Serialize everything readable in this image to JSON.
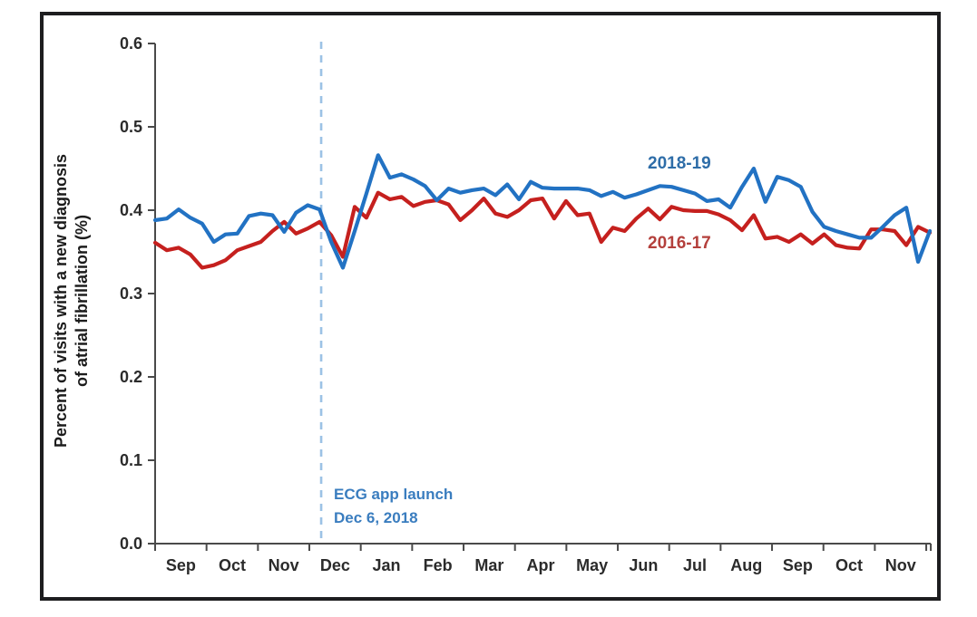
{
  "figure": {
    "y_axis_title_line1": "Percent of visits with a new diagnosis",
    "y_axis_title_line2": "of atrial fibrillation (%)",
    "annotation": {
      "line1": "ECG app launch",
      "line2": "Dec 6, 2018"
    },
    "series_labels": {
      "blue": "2018-19",
      "red": "2016-17"
    }
  },
  "colors": {
    "blue_line": "#2272c3",
    "red_line": "#c5201e",
    "blue_label": "#2e6da8",
    "red_label": "#b4403c",
    "annotation_text": "#3a7dbf",
    "event_dashed_line": "#9cc2e5",
    "axis": "#4a4a4a",
    "frame_border": "#1d1d1f",
    "background": "#ffffff"
  },
  "chart_data": {
    "type": "line",
    "title": "",
    "xlabel": "",
    "ylabel": "Percent of visits with a new diagnosis of atrial fibrillation (%)",
    "ylim": [
      0.0,
      0.6
    ],
    "y_ticks": [
      "0.0",
      "0.1",
      "0.2",
      "0.3",
      "0.4",
      "0.5",
      "0.6"
    ],
    "x_months": [
      "Sep",
      "Oct",
      "Nov",
      "Dec",
      "Jan",
      "Feb",
      "Mar",
      "Apr",
      "May",
      "Jun",
      "Jul",
      "Aug",
      "Sep",
      "Oct",
      "Nov"
    ],
    "x_unit": "weekly data points spanning late Aug through late Nov of the following year",
    "grid": false,
    "legend_position": "inline-labels-on-plot",
    "event_line": {
      "label_line1": "ECG app launch",
      "label_line2": "Dec 6, 2018",
      "x_month_fraction": 3.23,
      "style": "dashed-vertical"
    },
    "series": [
      {
        "name": "2016-17",
        "color": "#c5201e",
        "values": [
          0.361,
          0.352,
          0.355,
          0.347,
          0.331,
          0.334,
          0.34,
          0.352,
          0.357,
          0.362,
          0.375,
          0.386,
          0.372,
          0.378,
          0.386,
          0.37,
          0.344,
          0.404,
          0.391,
          0.421,
          0.413,
          0.416,
          0.405,
          0.41,
          0.412,
          0.407,
          0.388,
          0.4,
          0.414,
          0.396,
          0.392,
          0.4,
          0.412,
          0.414,
          0.39,
          0.411,
          0.394,
          0.396,
          0.362,
          0.379,
          0.375,
          0.39,
          0.402,
          0.389,
          0.404,
          0.4,
          0.399,
          0.399,
          0.395,
          0.388,
          0.376,
          0.394,
          0.366,
          0.368,
          0.362,
          0.371,
          0.36,
          0.371,
          0.358,
          0.355,
          0.354,
          0.377,
          0.377,
          0.375,
          0.358,
          0.38,
          0.373
        ]
      },
      {
        "name": "2018-19",
        "color": "#2272c3",
        "values": [
          0.388,
          0.39,
          0.401,
          0.391,
          0.384,
          0.362,
          0.371,
          0.372,
          0.393,
          0.396,
          0.394,
          0.374,
          0.397,
          0.406,
          0.401,
          0.362,
          0.331,
          0.375,
          0.42,
          0.466,
          0.439,
          0.443,
          0.437,
          0.429,
          0.412,
          0.426,
          0.421,
          0.424,
          0.426,
          0.418,
          0.431,
          0.413,
          0.434,
          0.427,
          0.426,
          0.426,
          0.426,
          0.424,
          0.417,
          0.422,
          0.415,
          0.419,
          0.424,
          0.429,
          0.428,
          0.424,
          0.42,
          0.411,
          0.413,
          0.403,
          0.428,
          0.45,
          0.41,
          0.44,
          0.436,
          0.428,
          0.398,
          0.38,
          0.375,
          0.371,
          0.367,
          0.367,
          0.38,
          0.394,
          0.403,
          0.338,
          0.375
        ]
      }
    ]
  }
}
